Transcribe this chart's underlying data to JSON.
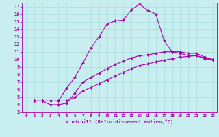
{
  "xlabel": "Windchill (Refroidissement éolien,°C)",
  "bg_color": "#c8eef0",
  "grid_color": "#a8dce0",
  "line_color": "#aa00aa",
  "xlim": [
    -0.5,
    23.5
  ],
  "ylim": [
    3,
    17.5
  ],
  "xticks": [
    0,
    1,
    2,
    3,
    4,
    5,
    6,
    7,
    8,
    9,
    10,
    11,
    12,
    13,
    14,
    15,
    16,
    17,
    18,
    19,
    20,
    21,
    22,
    23
  ],
  "yticks": [
    3,
    4,
    5,
    6,
    7,
    8,
    9,
    10,
    11,
    12,
    13,
    14,
    15,
    16,
    17
  ],
  "line1_x": [
    1,
    2,
    3,
    4,
    5,
    6,
    7,
    8,
    9,
    10,
    11,
    12,
    13,
    14,
    15,
    16,
    17,
    18,
    19,
    20,
    21,
    22,
    23
  ],
  "line1_y": [
    4.5,
    4.5,
    4.5,
    4.5,
    6.2,
    7.6,
    9.5,
    11.5,
    13.0,
    14.7,
    15.1,
    15.2,
    16.6,
    17.3,
    16.5,
    16.0,
    12.5,
    11.0,
    10.8,
    10.5,
    10.5,
    10.2,
    10.0
  ],
  "line2_x": [
    1,
    2,
    3,
    4,
    5,
    6,
    7,
    8,
    9,
    10,
    11,
    12,
    13,
    14,
    15,
    16,
    17,
    18,
    19,
    20,
    21,
    22,
    23
  ],
  "line2_y": [
    4.5,
    4.5,
    4.0,
    4.0,
    4.2,
    5.5,
    7.0,
    7.6,
    8.2,
    8.8,
    9.3,
    9.8,
    10.2,
    10.5,
    10.6,
    10.8,
    11.0,
    11.0,
    11.0,
    10.8,
    10.8,
    10.3,
    10.0
  ],
  "line3_x": [
    1,
    2,
    3,
    4,
    5,
    6,
    7,
    8,
    9,
    10,
    11,
    12,
    13,
    14,
    15,
    16,
    17,
    18,
    19,
    20,
    21,
    22,
    23
  ],
  "line3_y": [
    4.5,
    4.5,
    4.5,
    4.5,
    4.5,
    5.0,
    5.8,
    6.3,
    6.8,
    7.3,
    7.8,
    8.3,
    8.8,
    9.2,
    9.4,
    9.7,
    9.9,
    10.1,
    10.3,
    10.4,
    10.5,
    10.1,
    10.0
  ]
}
